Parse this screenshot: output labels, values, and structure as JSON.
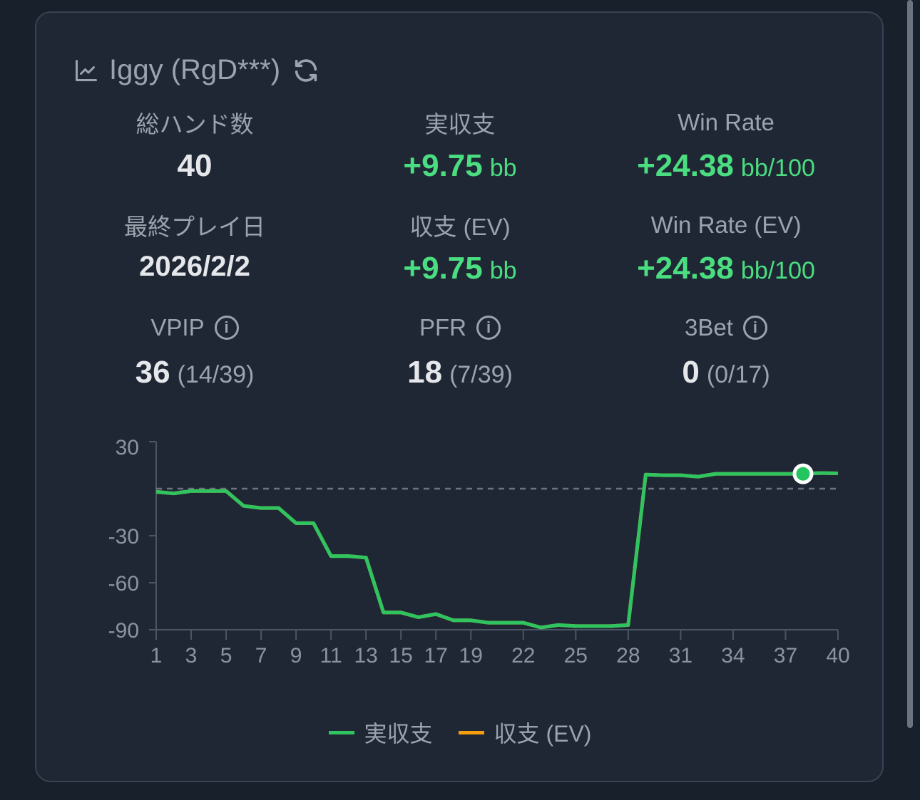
{
  "header": {
    "title": "Iggy (RgD***)",
    "icon": "line-chart-icon",
    "refresh_icon": "refresh-icon"
  },
  "stats": [
    {
      "label": "総ハンド数",
      "value": "40"
    },
    {
      "label": "実収支",
      "value": "+9.75",
      "unit": "bb"
    },
    {
      "label": "Win Rate",
      "value": "+24.38",
      "unit": "bb/100"
    },
    {
      "label": "最終プレイ日",
      "value": "2026/2/2"
    },
    {
      "label": "収支 (EV)",
      "value": "+9.75",
      "unit": "bb"
    },
    {
      "label": "Win Rate (EV)",
      "value": "+24.38",
      "unit": "bb/100"
    },
    {
      "label": "VPIP",
      "value": "36",
      "sub": "(14/39)"
    },
    {
      "label": "PFR",
      "value": "18",
      "sub": "(7/39)"
    },
    {
      "label": "3Bet",
      "value": "0",
      "sub": "(0/17)"
    }
  ],
  "colors": {
    "positive": "#4ade80",
    "line": "#2fc45f",
    "ev": "#f59e0b"
  },
  "chart_data": {
    "type": "line",
    "x": [
      1,
      2,
      3,
      4,
      5,
      6,
      7,
      8,
      9,
      10,
      11,
      12,
      13,
      14,
      15,
      16,
      17,
      18,
      19,
      20,
      21,
      22,
      23,
      24,
      25,
      26,
      27,
      28,
      29,
      30,
      31,
      32,
      33,
      34,
      35,
      36,
      37,
      38,
      39,
      40
    ],
    "series": [
      {
        "name": "実収支",
        "color": "#2fc45f",
        "values": [
          -2,
          -3,
          -1.5,
          -1.5,
          -1.5,
          -11,
          -12.3,
          -12.3,
          -22,
          -22,
          -43,
          -43,
          -44,
          -79,
          -79,
          -82,
          -80,
          -84,
          -84,
          -85.5,
          -85.5,
          -85.5,
          -88.6,
          -87,
          -87.7,
          -87.7,
          -87.7,
          -87,
          9,
          8.6,
          8.6,
          7.7,
          9.5,
          9.5,
          9.5,
          9.5,
          9.5,
          9.5,
          10,
          9.75
        ]
      },
      {
        "name": "収支 (EV)",
        "color": "#f59e0b",
        "values": [
          -2,
          -3,
          -1.5,
          -1.5,
          -1.5,
          -11,
          -12.3,
          -12.3,
          -22,
          -22,
          -43,
          -43,
          -44,
          -79,
          -79,
          -82,
          -80,
          -84,
          -84,
          -85.5,
          -85.5,
          -85.5,
          -88.6,
          -87,
          -87.7,
          -87.7,
          -87.7,
          -87,
          9,
          8.6,
          8.6,
          7.7,
          9.5,
          9.5,
          9.5,
          9.5,
          9.5,
          9.5,
          10,
          9.75
        ]
      }
    ],
    "x_ticks": [
      1,
      3,
      5,
      7,
      9,
      11,
      13,
      15,
      17,
      19,
      22,
      25,
      28,
      31,
      34,
      37,
      40
    ],
    "y_ticks": [
      30,
      -30,
      -60,
      -90
    ],
    "ylim": [
      -90,
      30
    ],
    "reference_line": 0,
    "highlighted_x": 38,
    "legend": "bottom-center"
  }
}
